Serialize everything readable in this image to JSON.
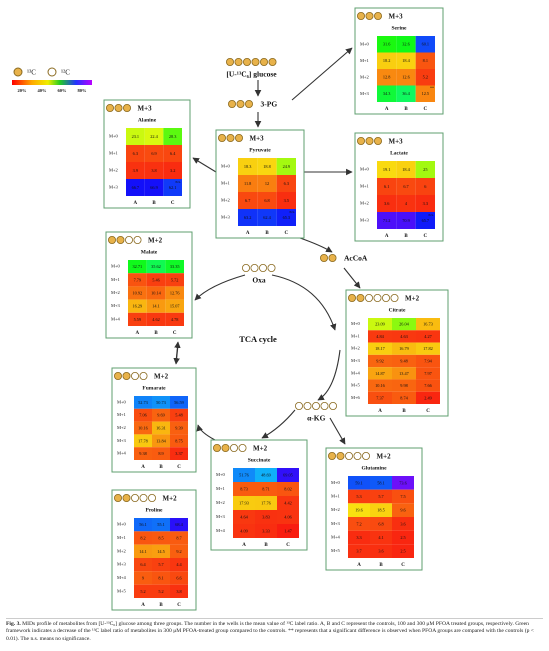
{
  "legend": {
    "labeled": "¹³C",
    "unlabeled": "¹²C",
    "scale": [
      "20%",
      "40%",
      "60%",
      "80%"
    ]
  },
  "nodes": [
    {
      "label": "[U-¹³C₆] glucose",
      "carbons": 6,
      "labeled": 6
    },
    {
      "label": "3-PG",
      "carbons": 3,
      "labeled": 3
    },
    {
      "label": "AcCoA",
      "carbons": 2,
      "labeled": 2
    },
    {
      "label": "Oxa",
      "carbons": 4,
      "labeled": 0
    },
    {
      "label": "α-KG",
      "carbons": 5,
      "labeled": 0
    }
  ],
  "cycle_label": "TCA cycle",
  "metabolites": [
    {
      "name": "Serine",
      "tag": "M+3",
      "carbons": 3,
      "labeled": 3,
      "rows": [
        "M+0",
        "M+1",
        "M+2",
        "M+3"
      ],
      "columns": [
        "A",
        "B",
        "C"
      ],
      "values": [
        [
          31.6,
          32.6,
          60.1
        ],
        [
          18.2,
          18.4,
          8.1
        ],
        [
          12.8,
          12.6,
          5.2
        ],
        [
          34.3,
          36.4,
          {
            "value": 12.5,
            "note": "**"
          }
        ]
      ]
    },
    {
      "name": "Alanine",
      "tag": "M+3",
      "carbons": 3,
      "labeled": 3,
      "rows": [
        "M+0",
        "M+1",
        "M+2",
        "M+3"
      ],
      "columns": [
        "A",
        "B",
        "C"
      ],
      "values": [
        [
          23.1,
          22.4,
          28.3
        ],
        [
          6.3,
          6.9,
          6.4
        ],
        [
          3.9,
          3.8,
          3.2
        ],
        [
          66.7,
          66.9,
          {
            "value": 62.1,
            "note": "n.s."
          }
        ]
      ]
    },
    {
      "name": "Pyruvate",
      "tag": "M+3",
      "carbons": 3,
      "labeled": 3,
      "rows": [
        "M+0",
        "M+1",
        "M+2",
        "M+3"
      ],
      "columns": [
        "A",
        "B",
        "C"
      ],
      "values": [
        [
          18.3,
          18.8,
          24.9
        ],
        [
          11.8,
          12.0,
          6.3
        ],
        [
          6.7,
          6.8,
          3.5
        ],
        [
          63.2,
          62.4,
          {
            "value": 65.3,
            "note": "n.s."
          }
        ]
      ]
    },
    {
      "name": "Lactate",
      "tag": "M+3",
      "carbons": 3,
      "labeled": 3,
      "rows": [
        "M+0",
        "M+1",
        "M+2",
        "M+3"
      ],
      "columns": [
        "A",
        "B",
        "C"
      ],
      "values": [
        [
          19.1,
          18.4,
          25.0
        ],
        [
          6.1,
          6.7,
          6.0
        ],
        [
          3.6,
          4.0,
          3.3
        ],
        [
          71.2,
          70.9,
          {
            "value": 65.7,
            "note": "n.s."
          }
        ]
      ]
    },
    {
      "name": "Malate",
      "tag": "M+2",
      "carbons": 4,
      "labeled": 2,
      "rows": [
        "M+0",
        "M+1",
        "M+2",
        "M+3",
        "M+4"
      ],
      "columns": [
        "A",
        "B",
        "C"
      ],
      "values": [
        [
          32.71,
          35.62,
          33.35
        ],
        [
          7.79,
          5.46,
          5.72
        ],
        [
          10.92,
          10.14,
          12.76
        ],
        [
          16.29,
          14.1,
          15.07
        ],
        [
          5.59,
          4.62,
          4.78
        ]
      ]
    },
    {
      "name": "Citrate",
      "tag": "M+2",
      "carbons": 6,
      "labeled": 2,
      "rows": [
        "M+0",
        "M+1",
        "M+2",
        "M+3",
        "M+4",
        "M+5",
        "M+6"
      ],
      "columns": [
        "A",
        "B",
        "C"
      ],
      "values": [
        [
          23.09,
          26.04,
          16.73
        ],
        [
          4.84,
          4.63,
          4.27
        ],
        [
          18.17,
          16.79,
          17.82
        ],
        [
          9.92,
          9.48,
          7.94
        ],
        [
          14.87,
          13.47,
          7.97
        ],
        [
          10.16,
          9.98,
          7.66
        ],
        [
          7.37,
          8.74,
          2.49
        ]
      ]
    },
    {
      "name": "Fumarate",
      "tag": "M+2",
      "carbons": 4,
      "labeled": 2,
      "rows": [
        "M+0",
        "M+1",
        "M+2",
        "M+3",
        "M+4"
      ],
      "columns": [
        "A",
        "B",
        "C"
      ],
      "values": [
        [
          52.73,
          50.73,
          56.59
        ],
        [
          7.06,
          9.69,
          5.48
        ],
        [
          10.16,
          16.31,
          9.39
        ],
        [
          17.78,
          13.84,
          8.75
        ],
        [
          9.38,
          8.9,
          3.37
        ]
      ]
    },
    {
      "name": "Succinate",
      "tag": "M+2",
      "carbons": 4,
      "labeled": 2,
      "rows": [
        "M+0",
        "M+1",
        "M+2",
        "M+3",
        "M+4"
      ],
      "columns": [
        "A",
        "B",
        "C"
      ],
      "values": [
        [
          51.76,
          48.69,
          69.05
        ],
        [
          8.73,
          8.71,
          8.02
        ],
        [
          17.93,
          17.76,
          4.42
        ],
        [
          4.64,
          3.83,
          4.06
        ],
        [
          4.09,
          3.33,
          1.47
        ]
      ]
    },
    {
      "name": "Glutamine",
      "tag": "M+2",
      "carbons": 5,
      "labeled": 2,
      "rows": [
        "M+0",
        "M+1",
        "M+2",
        "M+3",
        "M+4",
        "M+5"
      ],
      "columns": [
        "A",
        "B",
        "C"
      ],
      "values": [
        [
          59.1,
          58.1,
          73.6
        ],
        [
          5.3,
          5.7,
          7.5
        ],
        [
          19.6,
          18.5,
          9.6
        ],
        [
          7.2,
          6.8,
          3.6
        ],
        [
          3.3,
          4.1,
          2.5
        ],
        [
          3.7,
          3.6,
          2.5
        ]
      ]
    },
    {
      "name": "Proline",
      "tag": "M+2",
      "carbons": 5,
      "labeled": 2,
      "rows": [
        "M+0",
        "M+1",
        "M+2",
        "M+3",
        "M+4",
        "M+5"
      ],
      "columns": [
        "A",
        "B",
        "C"
      ],
      "values": [
        [
          56.1,
          55.1,
          68.4
        ],
        [
          8.2,
          8.5,
          8.7
        ],
        [
          14.1,
          14.5,
          9.2
        ],
        [
          6.4,
          5.7,
          4.4
        ],
        [
          9.0,
          8.1,
          6.6
        ],
        [
          5.2,
          5.2,
          3.8
        ]
      ]
    }
  ],
  "caption": {
    "label": "Fig. 3.",
    "text": "MIDs profile of metabolites from [U-¹³C₆] glucose among three groups. The number in the wells is the mean value of ¹³C label ratio. A, B and C represent the controls, 100 and 300 μM PFOA treated groups, respectively. Green framework indicates a decrease of the ¹³C label ratio of metabolites in 300 μM PFOA-treated group compared to the controls. ** represents that a significant difference is observed when PFOA groups are compared with the controls (p < 0.01). The n.s. means no significance."
  }
}
